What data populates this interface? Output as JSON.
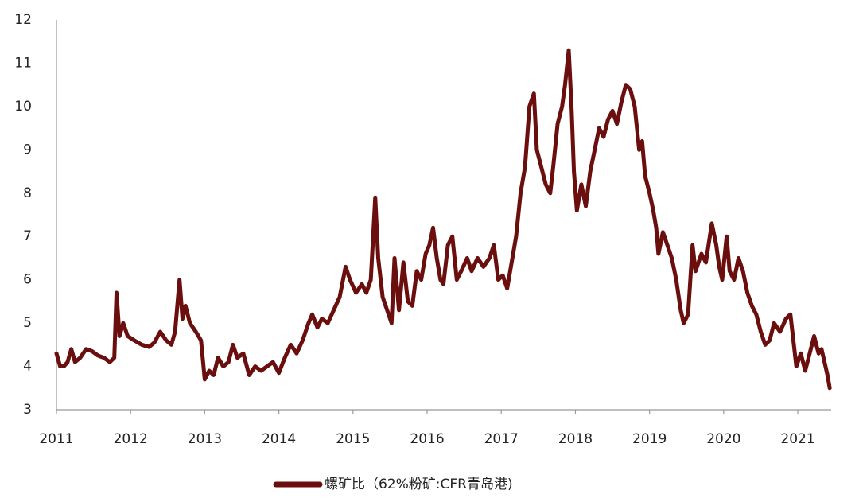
{
  "chart_data": {
    "type": "line",
    "xlim": [
      2011,
      2021.45
    ],
    "xticks": [
      2011,
      2012,
      2013,
      2014,
      2015,
      2016,
      2017,
      2018,
      2019,
      2020,
      2021
    ],
    "ylim": [
      3,
      12
    ],
    "yticks": [
      3,
      4,
      5,
      6,
      7,
      8,
      9,
      10,
      11,
      12
    ],
    "legend": "bottom",
    "series": [
      {
        "name": "螺矿比（62%粉矿:CFR青岛港)",
        "color": "#6b0e0e",
        "x": [
          2011.0,
          2011.05,
          2011.1,
          2011.15,
          2011.2,
          2011.25,
          2011.32,
          2011.4,
          2011.48,
          2011.56,
          2011.64,
          2011.72,
          2011.78,
          2011.81,
          2011.85,
          2011.9,
          2011.96,
          2012.05,
          2012.15,
          2012.25,
          2012.32,
          2012.4,
          2012.48,
          2012.55,
          2012.6,
          2012.66,
          2012.7,
          2012.74,
          2012.8,
          2012.88,
          2012.95,
          2013.0,
          2013.06,
          2013.12,
          2013.18,
          2013.25,
          2013.32,
          2013.38,
          2013.44,
          2013.52,
          2013.6,
          2013.68,
          2013.76,
          2013.84,
          2013.92,
          2014.0,
          2014.08,
          2014.16,
          2014.24,
          2014.32,
          2014.4,
          2014.45,
          2014.52,
          2014.58,
          2014.66,
          2014.74,
          2014.82,
          2014.9,
          2014.96,
          2015.04,
          2015.12,
          2015.18,
          2015.24,
          2015.3,
          2015.34,
          2015.4,
          2015.46,
          2015.52,
          2015.56,
          2015.62,
          2015.68,
          2015.74,
          2015.8,
          2015.86,
          2015.92,
          2015.98,
          2016.03,
          2016.08,
          2016.13,
          2016.18,
          2016.22,
          2016.28,
          2016.34,
          2016.4,
          2016.46,
          2016.54,
          2016.6,
          2016.68,
          2016.76,
          2016.84,
          2016.9,
          2016.96,
          2017.02,
          2017.08,
          2017.14,
          2017.2,
          2017.26,
          2017.32,
          2017.38,
          2017.44,
          2017.48,
          2017.54,
          2017.6,
          2017.66,
          2017.7,
          2017.76,
          2017.82,
          2017.86,
          2017.91,
          2017.95,
          2017.98,
          2018.02,
          2018.08,
          2018.14,
          2018.2,
          2018.26,
          2018.32,
          2018.38,
          2018.44,
          2018.5,
          2018.56,
          2018.62,
          2018.68,
          2018.74,
          2018.8,
          2018.86,
          2018.9,
          2018.94,
          2019.0,
          2019.05,
          2019.09,
          2019.12,
          2019.18,
          2019.24,
          2019.3,
          2019.36,
          2019.42,
          2019.46,
          2019.52,
          2019.58,
          2019.62,
          2019.7,
          2019.76,
          2019.84,
          2019.9,
          2019.94,
          2019.98,
          2020.04,
          2020.08,
          2020.14,
          2020.2,
          2020.26,
          2020.32,
          2020.38,
          2020.44,
          2020.5,
          2020.56,
          2020.62,
          2020.68,
          2020.76,
          2020.84,
          2020.9,
          2020.94,
          2020.98,
          2021.04,
          2021.1,
          2021.16,
          2021.22,
          2021.28,
          2021.32,
          2021.36,
          2021.4,
          2021.43
        ],
        "values": [
          4.3,
          4.0,
          4.0,
          4.1,
          4.4,
          4.1,
          4.2,
          4.4,
          4.35,
          4.25,
          4.2,
          4.1,
          4.2,
          5.7,
          4.7,
          5.0,
          4.7,
          4.6,
          4.5,
          4.45,
          4.55,
          4.8,
          4.6,
          4.5,
          4.8,
          6.0,
          5.1,
          5.4,
          5.0,
          4.8,
          4.6,
          3.7,
          3.9,
          3.8,
          4.2,
          4.0,
          4.1,
          4.5,
          4.2,
          4.3,
          3.8,
          4.0,
          3.9,
          4.0,
          4.1,
          3.85,
          4.2,
          4.5,
          4.3,
          4.6,
          5.0,
          5.2,
          4.9,
          5.1,
          5.0,
          5.3,
          5.6,
          6.3,
          6.0,
          5.7,
          5.9,
          5.7,
          6.0,
          7.9,
          6.5,
          5.6,
          5.3,
          5.0,
          6.5,
          5.3,
          6.4,
          5.5,
          5.4,
          6.2,
          6.0,
          6.6,
          6.8,
          7.2,
          6.5,
          6.0,
          5.9,
          6.8,
          7.0,
          6.0,
          6.2,
          6.5,
          6.2,
          6.5,
          6.3,
          6.5,
          6.8,
          6.0,
          6.1,
          5.8,
          6.4,
          7.0,
          8.0,
          8.6,
          10.0,
          10.3,
          9.0,
          8.6,
          8.2,
          8.0,
          8.6,
          9.6,
          10.0,
          10.5,
          11.3,
          9.9,
          8.5,
          7.6,
          8.2,
          7.7,
          8.5,
          9.0,
          9.5,
          9.3,
          9.7,
          9.9,
          9.6,
          10.1,
          10.5,
          10.4,
          10.0,
          9.0,
          9.2,
          8.4,
          8.0,
          7.6,
          7.2,
          6.6,
          7.1,
          6.8,
          6.5,
          6.0,
          5.3,
          5.0,
          5.2,
          6.8,
          6.2,
          6.6,
          6.4,
          7.3,
          6.8,
          6.3,
          6.0,
          7.0,
          6.2,
          6.0,
          6.5,
          6.2,
          5.7,
          5.4,
          5.2,
          4.8,
          4.5,
          4.6,
          5.0,
          4.8,
          5.1,
          5.2,
          4.6,
          4.0,
          4.3,
          3.9,
          4.3,
          4.7,
          4.3,
          4.4,
          4.1,
          3.8,
          3.5
        ]
      }
    ]
  }
}
